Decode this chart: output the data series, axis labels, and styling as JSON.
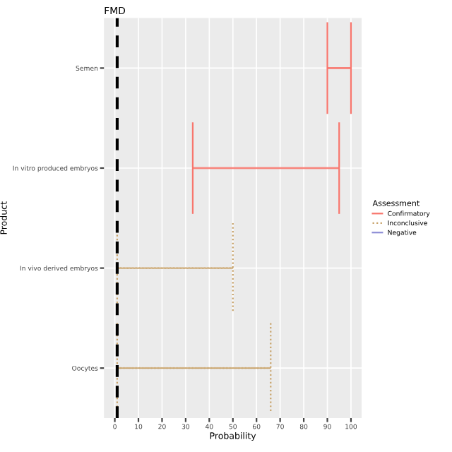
{
  "chart_data": {
    "type": "bar",
    "orientation": "horizontal",
    "title": "FMD",
    "xlabel": "Probability",
    "ylabel": "Product",
    "legend_title": "Assessment",
    "categories": [
      "Semen",
      "In vitro produced embryos",
      "In vivo derived embryos",
      "Oocytes"
    ],
    "series": [
      {
        "name": "Confirmatory",
        "color": "#f8766d",
        "line_style": "solid",
        "base": [
          90,
          33,
          null,
          null
        ],
        "values": [
          10,
          62,
          null,
          null
        ]
      },
      {
        "name": "Inconclusive",
        "color": "#c9a46c",
        "line_style": "dotted",
        "base": [
          null,
          null,
          1,
          1
        ],
        "values": [
          null,
          null,
          49,
          65
        ]
      },
      {
        "name": "Negative",
        "color": "#8e8ed6",
        "line_style": "solid",
        "base": [
          null,
          null,
          null,
          null
        ],
        "values": [
          null,
          null,
          null,
          null
        ]
      }
    ],
    "xlim": [
      -4.6,
      104.5
    ],
    "xticks": [
      0,
      10,
      20,
      30,
      40,
      50,
      60,
      70,
      80,
      90,
      100
    ],
    "grid": true,
    "legend": "right",
    "ref_lines": [
      {
        "axis": "x",
        "value": 1,
        "color": "#000000",
        "line_style": "dashed"
      }
    ]
  }
}
